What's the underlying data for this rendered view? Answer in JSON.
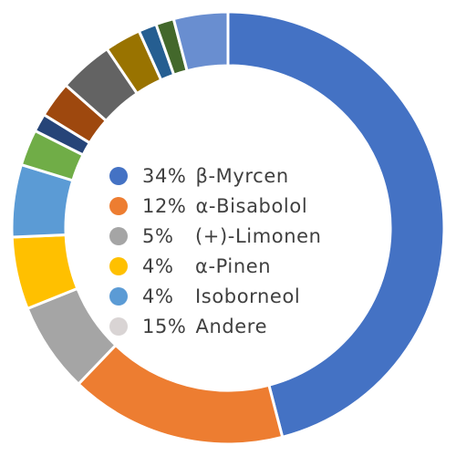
{
  "chart_data": {
    "type": "pie",
    "donut": true,
    "title": "",
    "legend_position": "center",
    "slices": [
      {
        "value": 34,
        "color": "#4472C4"
      },
      {
        "value": 12,
        "color": "#ED7D31"
      },
      {
        "value": 5,
        "color": "#A5A5A5"
      },
      {
        "value": 4,
        "color": "#FFC000"
      },
      {
        "value": 4,
        "color": "#5B9BD5"
      },
      {
        "value": 2,
        "color": "#70AD47"
      },
      {
        "value": 1,
        "color": "#264478"
      },
      {
        "value": 2,
        "color": "#9E480E"
      },
      {
        "value": 3,
        "color": "#636363"
      },
      {
        "value": 2,
        "color": "#997300"
      },
      {
        "value": 1,
        "color": "#255E91"
      },
      {
        "value": 1,
        "color": "#43682B"
      },
      {
        "value": 3,
        "color": "#698ED0"
      }
    ],
    "legend": [
      {
        "percent": "34%",
        "label": "β-Myrcen",
        "color": "#4472C4"
      },
      {
        "percent": "12%",
        "label": "α-Bisabolol",
        "color": "#ED7D31"
      },
      {
        "percent": "5%",
        "label": "(+)-Limonen",
        "color": "#A5A5A5"
      },
      {
        "percent": "4%",
        "label": "α-Pinen",
        "color": "#FFC000"
      },
      {
        "percent": "4%",
        "label": "Isoborneol",
        "color": "#5B9BD5"
      },
      {
        "percent": "15%",
        "label": "Andere",
        "color": "#D9D4D4"
      }
    ]
  }
}
